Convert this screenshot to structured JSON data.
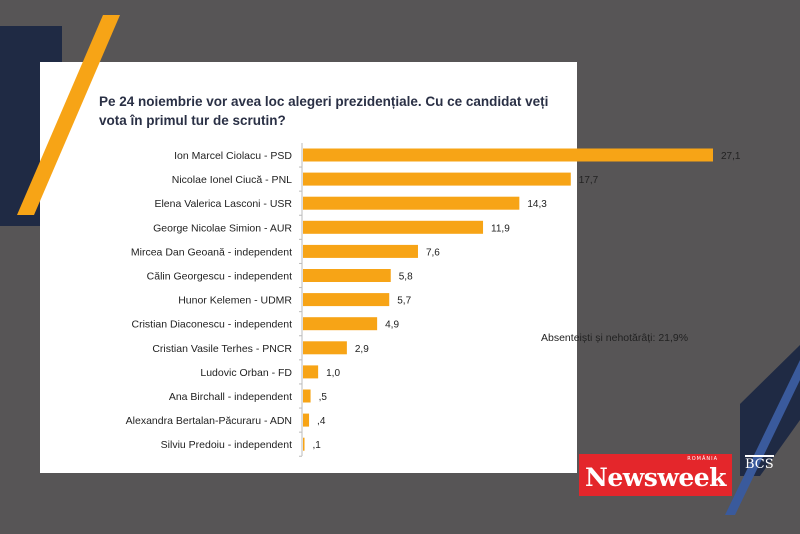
{
  "chart_data": {
    "type": "bar",
    "orientation": "horizontal",
    "title": "Pe 24 noiembrie vor avea loc alegeri prezidențiale. Cu ce candidat veți vota în primul tur de scrutin?",
    "categories": [
      "Ion Marcel Ciolacu - PSD",
      "Nicolae Ionel Ciucă - PNL",
      "Elena Valerica Lasconi - USR",
      "George Nicolae Simion - AUR",
      "Mircea Dan Geoană - independent",
      "Călin Georgescu - independent",
      "Hunor Kelemen - UDMR",
      "Cristian Diaconescu - independent",
      "Cristian Vasile Terhes - PNCR",
      "Ludovic Orban - FD",
      "Ana Birchall - independent",
      "Alexandra Bertalan-Păcuraru - ADN",
      "Silviu Predoiu - independent"
    ],
    "values": [
      27.1,
      17.7,
      14.3,
      11.9,
      7.6,
      5.8,
      5.7,
      4.9,
      2.9,
      1.0,
      0.5,
      0.4,
      0.1
    ],
    "data_labels": [
      "27,1",
      "17,7",
      "14,3",
      "11,9",
      "7,6",
      "5,8",
      "5,7",
      "4,9",
      "2,9",
      "1,0",
      ",5",
      ",4",
      ",1"
    ],
    "annotation": "Absenteiști și nehotărâți: 21,9%",
    "bar_color": "#f7a416",
    "grid": false
  },
  "logos": {
    "newsweek": "Newsweek",
    "newsweek_sub": "ROMÂNIA",
    "bcs": "BCS"
  },
  "colors": {
    "background": "#575556",
    "navy": "#1f2a44",
    "orange": "#f7a416",
    "blue": "#3a5a9c"
  }
}
